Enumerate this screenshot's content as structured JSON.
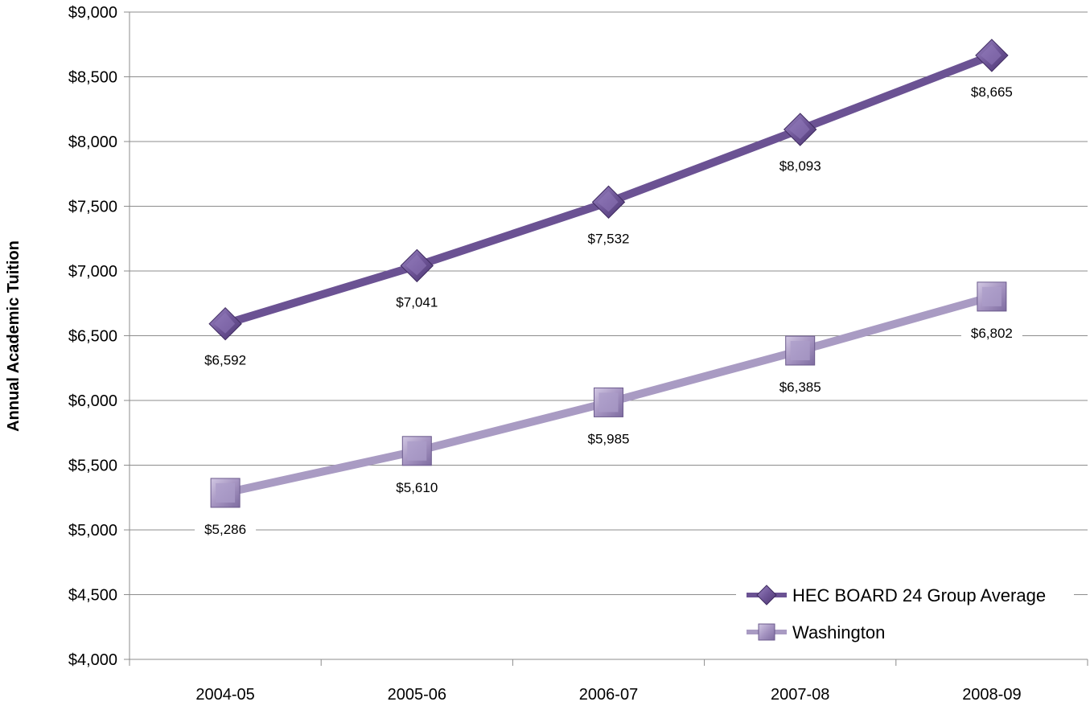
{
  "chart_data": {
    "type": "line",
    "title": "",
    "xlabel": "",
    "ylabel": "Annual Academic Tuition",
    "categories": [
      "2004-05",
      "2005-06",
      "2006-07",
      "2007-08",
      "2008-09"
    ],
    "ylim": [
      4000,
      9000
    ],
    "ytick_step": 500,
    "ytick_labels": [
      "$4,000",
      "$4,500",
      "$5,000",
      "$5,500",
      "$6,000",
      "$6,500",
      "$7,000",
      "$7,500",
      "$8,000",
      "$8,500",
      "$9,000"
    ],
    "grid": "horizontal",
    "legend_position": "bottom-right",
    "series": [
      {
        "name": "HEC BOARD 24 Group Average",
        "values": [
          6592,
          7041,
          7532,
          8093,
          8665
        ],
        "labels": [
          "$6,592",
          "$7,041",
          "$7,532",
          "$8,093",
          "$8,665"
        ],
        "marker": "diamond",
        "color": "#6b5293",
        "marker_color": "#7a62a3"
      },
      {
        "name": "Washington",
        "values": [
          5286,
          5610,
          5985,
          6385,
          6802
        ],
        "labels": [
          "$5,286",
          "$5,610",
          "$5,985",
          "$6,385",
          "$6,802"
        ],
        "marker": "square",
        "color": "#a99bc3",
        "marker_color": "#a493c0"
      }
    ]
  }
}
